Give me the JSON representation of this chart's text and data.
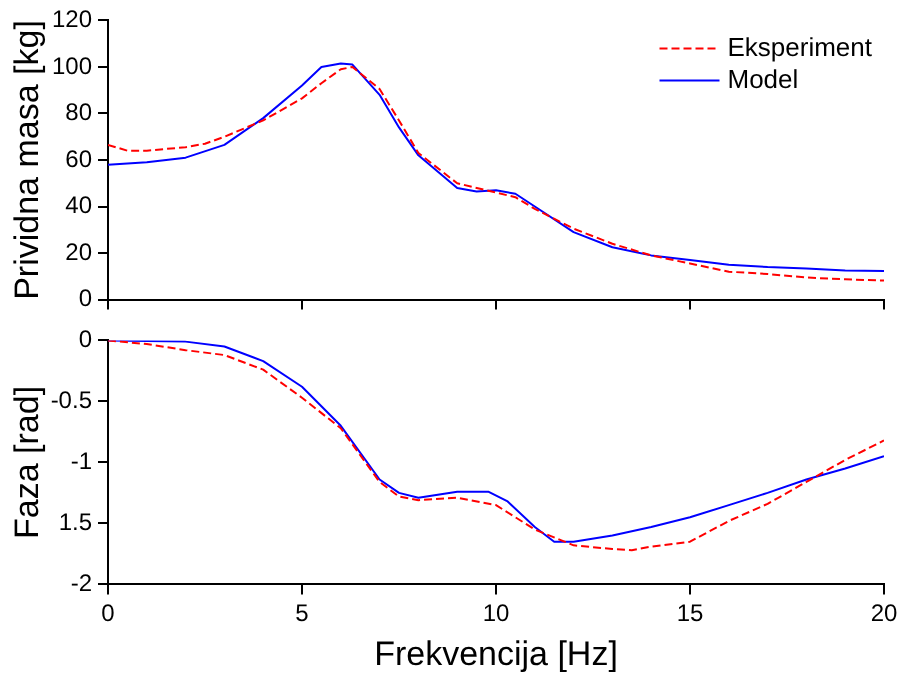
{
  "chart_data": [
    {
      "type": "line",
      "ylabel": "Prividna masa [kg]",
      "xlim": [
        0,
        20
      ],
      "xticks": [
        0,
        5,
        10,
        15,
        20
      ],
      "ylim": [
        0,
        120
      ],
      "yticks": [
        0,
        20,
        40,
        60,
        80,
        100,
        120
      ],
      "tick_labels": "y",
      "grid": false,
      "legend": "top right",
      "marker": "none",
      "series": [
        {
          "name": "Eksperiment",
          "color": "#ff0000",
          "line_style": "dashed",
          "x": [
            0,
            0.5,
            1,
            2,
            2.5,
            3,
            4,
            5,
            5.5,
            6,
            6.3,
            7,
            7.5,
            8,
            9,
            10,
            10.5,
            11,
            12,
            13,
            14,
            15,
            16,
            17,
            18,
            19,
            20
          ],
          "values": [
            66.5,
            64,
            64,
            65.5,
            67,
            70,
            77,
            86.5,
            93,
            99,
            100,
            90.5,
            77,
            63,
            50,
            46,
            44,
            39,
            30.5,
            24,
            19,
            15.5,
            12,
            11,
            9.5,
            8.7,
            8.2
          ]
        },
        {
          "name": "Model",
          "color": "#0000ff",
          "line_style": "solid",
          "x": [
            0,
            1,
            2,
            3,
            4,
            5,
            5.5,
            6,
            6.3,
            7,
            7.5,
            8,
            9,
            9.5,
            10,
            10.5,
            11,
            12,
            13,
            14,
            15,
            16,
            17,
            18,
            19,
            20
          ],
          "values": [
            58,
            59,
            61,
            66.5,
            78,
            92,
            100,
            101.5,
            101,
            88,
            74,
            62,
            48,
            46.5,
            47,
            45.5,
            40,
            29,
            22.5,
            19,
            17,
            15,
            14,
            13.4,
            12.5,
            12.3
          ]
        }
      ]
    },
    {
      "type": "line",
      "xlabel": "Frekvencija [Hz]",
      "ylabel": "Faza [rad]",
      "xlim": [
        0,
        20
      ],
      "xticks": [
        0,
        5,
        10,
        15,
        20
      ],
      "ylim": [
        -2,
        0
      ],
      "yticks": [
        {
          "value": -2,
          "label": "-2"
        },
        {
          "value": -1.5,
          "label": "1.5"
        },
        {
          "value": -1,
          "label": "-1"
        },
        {
          "value": -0.5,
          "label": "-0.5"
        },
        {
          "value": 0,
          "label": "0"
        }
      ],
      "grid": false,
      "marker": "none",
      "series": [
        {
          "color": "#ff0000",
          "line_style": "dashed",
          "x": [
            0,
            1,
            2,
            3,
            4,
            5,
            6,
            7,
            7.5,
            8,
            9,
            10,
            11,
            12,
            13,
            13.5,
            14,
            15,
            16,
            17,
            18,
            19,
            20
          ],
          "values": [
            0,
            -0.03,
            -0.08,
            -0.12,
            -0.24,
            -0.47,
            -0.72,
            -1.16,
            -1.28,
            -1.31,
            -1.29,
            -1.35,
            -1.55,
            -1.68,
            -1.71,
            -1.72,
            -1.69,
            -1.65,
            -1.48,
            -1.34,
            -1.16,
            -0.98,
            -0.82
          ]
        },
        {
          "color": "#0000ff",
          "line_style": "solid",
          "x": [
            0,
            2,
            3,
            4,
            5,
            6,
            7,
            7.5,
            8,
            9,
            9.8,
            10.3,
            11,
            11.5,
            12,
            13,
            14,
            15,
            16,
            17,
            18,
            19,
            20
          ],
          "values": [
            0,
            -0.01,
            -0.05,
            -0.17,
            -0.38,
            -0.7,
            -1.14,
            -1.25,
            -1.29,
            -1.24,
            -1.24,
            -1.32,
            -1.53,
            -1.65,
            -1.65,
            -1.6,
            -1.53,
            -1.45,
            -1.35,
            -1.25,
            -1.14,
            -1.05,
            -0.95
          ]
        }
      ]
    }
  ]
}
